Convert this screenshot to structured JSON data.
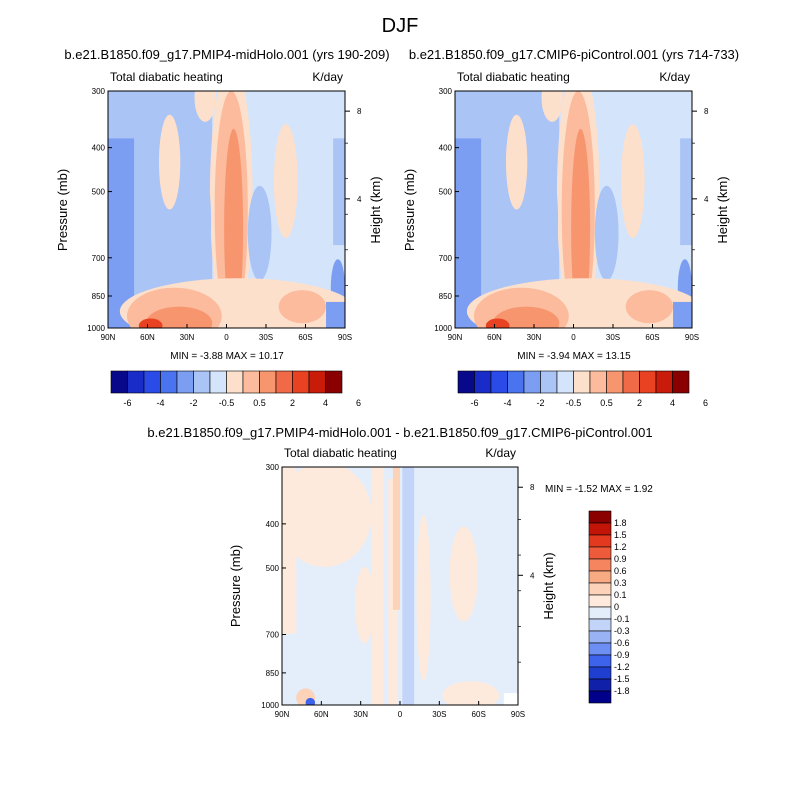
{
  "figure": {
    "title": "DJF"
  },
  "chart_data": [
    {
      "type": "heatmap",
      "title": "b.e21.B1850.f09_g17.PMIP4-midHolo.001 (yrs 190-209)",
      "left_label": "Total diabatic heating",
      "right_label": "K/day",
      "xlabel": "",
      "ylabel": "Pressure (mb)",
      "y2label": "Height (km)",
      "x_ticks": [
        "90N",
        "60N",
        "30N",
        "0",
        "30S",
        "60S",
        "90S"
      ],
      "y_ticks": [
        "300",
        "400",
        "500",
        "700",
        "850",
        "1000"
      ],
      "y_tick_values": [
        300,
        400,
        500,
        700,
        850,
        1000
      ],
      "y2_ticks": [
        "8",
        "4"
      ],
      "stats": "MIN =  -3.88  MAX =  10.17",
      "colorbar": [
        "-6",
        "-4",
        "-2",
        "-0.5",
        "0.5",
        "2",
        "4",
        "6"
      ]
    },
    {
      "type": "heatmap",
      "title": "b.e21.B1850.f09_g17.CMIP6-piControl.001 (yrs 714-733)",
      "left_label": "Total diabatic heating",
      "right_label": "K/day",
      "xlabel": "",
      "ylabel": "Pressure (mb)",
      "y2label": "Height (km)",
      "x_ticks": [
        "90N",
        "60N",
        "30N",
        "0",
        "30S",
        "60S",
        "90S"
      ],
      "y_ticks": [
        "300",
        "400",
        "500",
        "700",
        "850",
        "1000"
      ],
      "y_tick_values": [
        300,
        400,
        500,
        700,
        850,
        1000
      ],
      "y2_ticks": [
        "8",
        "4"
      ],
      "stats": "MIN =  -3.94  MAX =  13.15",
      "colorbar": [
        "-6",
        "-4",
        "-2",
        "-0.5",
        "0.5",
        "2",
        "4",
        "6"
      ]
    },
    {
      "type": "heatmap",
      "title": "b.e21.B1850.f09_g17.PMIP4-midHolo.001 - b.e21.B1850.f09_g17.CMIP6-piControl.001",
      "left_label": "Total diabatic heating",
      "right_label": "K/day",
      "xlabel": "",
      "ylabel": "Pressure (mb)",
      "y2label": "Height (km)",
      "x_ticks": [
        "90N",
        "60N",
        "30N",
        "0",
        "30S",
        "60S",
        "90S"
      ],
      "y_ticks": [
        "300",
        "400",
        "500",
        "700",
        "850",
        "1000"
      ],
      "y_tick_values": [
        300,
        400,
        500,
        700,
        850,
        1000
      ],
      "y2_ticks": [
        "8",
        "4"
      ],
      "stats": "MIN =  -1.52  MAX =   1.92",
      "colorbar": [
        "1.8",
        "1.5",
        "1.2",
        "0.9",
        "0.6",
        "0.3",
        "0.1",
        "0",
        "-0.1",
        "-0.3",
        "-0.6",
        "-0.9",
        "-1.2",
        "-1.5",
        "-1.8"
      ]
    }
  ],
  "colors": {
    "div14": [
      "#08088a",
      "#1a2cc8",
      "#2b4be8",
      "#4a73f0",
      "#7c9ef2",
      "#a9c4f5",
      "#d4e4fa",
      "#fde0cc",
      "#fbbb9c",
      "#f7956f",
      "#f16a47",
      "#e84222",
      "#c91b0a",
      "#8a0000"
    ],
    "div16": [
      "#00008b",
      "#1020a8",
      "#1f3fd0",
      "#3d62ec",
      "#6d8ef2",
      "#98b2f3",
      "#c2d4f7",
      "#e4eefb",
      "#fdeadc",
      "#fcd3b8",
      "#f8aa82",
      "#f4855e",
      "#ee5b3a",
      "#e33a1f",
      "#c21407",
      "#8a0000"
    ]
  }
}
